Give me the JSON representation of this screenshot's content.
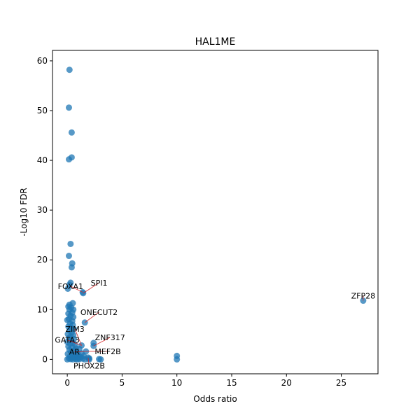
{
  "chart_data": {
    "type": "scatter",
    "title": "HAL1ME",
    "xlabel": "Odds ratio",
    "ylabel": "-Log10 FDR",
    "xlim": [
      -1.35,
      28.35
    ],
    "ylim": [
      -2.9,
      62.1
    ],
    "xticks": [
      0,
      5,
      10,
      15,
      20,
      25
    ],
    "yticks": [
      0,
      10,
      20,
      30,
      40,
      50,
      60
    ],
    "grid": false,
    "point_color": "#1f77b4",
    "annotation_line_color": "#d62728",
    "points": [
      {
        "x": 0.2,
        "y": 58.2
      },
      {
        "x": 0.15,
        "y": 50.6
      },
      {
        "x": 0.4,
        "y": 45.6
      },
      {
        "x": 0.4,
        "y": 40.6
      },
      {
        "x": 0.15,
        "y": 40.2
      },
      {
        "x": 0.3,
        "y": 23.2
      },
      {
        "x": 0.15,
        "y": 20.8
      },
      {
        "x": 0.45,
        "y": 19.3
      },
      {
        "x": 0.4,
        "y": 18.5
      },
      {
        "x": 0.3,
        "y": 15.4
      },
      {
        "x": 0.2,
        "y": 15.0
      },
      {
        "x": 0.05,
        "y": 14.2
      },
      {
        "x": 1.4,
        "y": 13.5
      },
      {
        "x": 1.45,
        "y": 13.3
      },
      {
        "x": 0.5,
        "y": 11.3
      },
      {
        "x": 0.2,
        "y": 11.0
      },
      {
        "x": 0.1,
        "y": 10.6
      },
      {
        "x": 0.35,
        "y": 10.4
      },
      {
        "x": 0.2,
        "y": 10.0
      },
      {
        "x": 0.55,
        "y": 10.0
      },
      {
        "x": 0.45,
        "y": 9.4
      },
      {
        "x": 0.1,
        "y": 9.2
      },
      {
        "x": 0.3,
        "y": 8.8
      },
      {
        "x": 0.55,
        "y": 8.5
      },
      {
        "x": 0.15,
        "y": 8.1
      },
      {
        "x": 0.0,
        "y": 7.9
      },
      {
        "x": 0.45,
        "y": 7.7
      },
      {
        "x": 1.6,
        "y": 7.4
      },
      {
        "x": 0.25,
        "y": 7.2
      },
      {
        "x": 0.5,
        "y": 6.9
      },
      {
        "x": 0.1,
        "y": 6.6
      },
      {
        "x": 0.35,
        "y": 6.3
      },
      {
        "x": 0.6,
        "y": 6.1
      },
      {
        "x": 0.2,
        "y": 5.8
      },
      {
        "x": 0.4,
        "y": 5.4
      },
      {
        "x": 0.05,
        "y": 5.1
      },
      {
        "x": 0.55,
        "y": 4.9
      },
      {
        "x": 0.3,
        "y": 4.6
      },
      {
        "x": 0.15,
        "y": 4.3
      },
      {
        "x": 0.6,
        "y": 4.1
      },
      {
        "x": 0.35,
        "y": 3.8
      },
      {
        "x": 0.0,
        "y": 3.5
      },
      {
        "x": 0.5,
        "y": 3.3
      },
      {
        "x": 0.25,
        "y": 3.1
      },
      {
        "x": 2.4,
        "y": 3.3
      },
      {
        "x": 2.4,
        "y": 2.7
      },
      {
        "x": 0.7,
        "y": 2.9
      },
      {
        "x": 1.3,
        "y": 2.8
      },
      {
        "x": 0.1,
        "y": 2.6
      },
      {
        "x": 0.45,
        "y": 2.4
      },
      {
        "x": 0.8,
        "y": 2.2
      },
      {
        "x": 1.1,
        "y": 2.1
      },
      {
        "x": 0.2,
        "y": 1.9
      },
      {
        "x": 0.6,
        "y": 1.8
      },
      {
        "x": 1.7,
        "y": 1.6
      },
      {
        "x": 0.35,
        "y": 1.5
      },
      {
        "x": 0.9,
        "y": 1.3
      },
      {
        "x": 1.3,
        "y": 1.2
      },
      {
        "x": 0.05,
        "y": 1.1
      },
      {
        "x": 0.5,
        "y": 1.0
      },
      {
        "x": 1.0,
        "y": 0.9
      },
      {
        "x": 0.7,
        "y": 0.8
      },
      {
        "x": 1.5,
        "y": 0.7
      },
      {
        "x": 0.25,
        "y": 0.6
      },
      {
        "x": 0.85,
        "y": 0.5
      },
      {
        "x": 1.2,
        "y": 0.45
      },
      {
        "x": 0.4,
        "y": 0.4
      },
      {
        "x": 1.9,
        "y": 0.35
      },
      {
        "x": 2.0,
        "y": 0.2
      },
      {
        "x": 0.6,
        "y": 0.3
      },
      {
        "x": 1.0,
        "y": 0.25
      },
      {
        "x": 0.15,
        "y": 0.2
      },
      {
        "x": 1.4,
        "y": 0.15
      },
      {
        "x": 0.75,
        "y": 0.1
      },
      {
        "x": 0.3,
        "y": 0.05
      },
      {
        "x": 1.1,
        "y": 0.05
      },
      {
        "x": 0.0,
        "y": 0.0
      },
      {
        "x": 0.5,
        "y": 0.0
      },
      {
        "x": 0.9,
        "y": 0.0
      },
      {
        "x": 1.6,
        "y": 0.0
      },
      {
        "x": 2.0,
        "y": 0.0
      },
      {
        "x": 2.9,
        "y": 0.05
      },
      {
        "x": 3.05,
        "y": 0.0
      },
      {
        "x": 10.0,
        "y": 0.7
      },
      {
        "x": 10.0,
        "y": 0.0
      },
      {
        "x": 27.0,
        "y": 11.8
      }
    ],
    "annotations": [
      {
        "label": "SPI1",
        "x": 1.45,
        "y": 13.3,
        "text_x": 2.9,
        "text_y": 15.4
      },
      {
        "label": "FOXA1",
        "x": 1.4,
        "y": 13.5,
        "text_x": 0.3,
        "text_y": 14.7
      },
      {
        "label": "ZFP28",
        "x": 27.0,
        "y": 11.8,
        "text_x": 27.0,
        "text_y": 12.8
      },
      {
        "label": "ONECUT2",
        "x": 1.6,
        "y": 7.4,
        "text_x": 2.9,
        "text_y": 9.5
      },
      {
        "label": "ZIM3",
        "x": 1.3,
        "y": 2.8,
        "text_x": 0.7,
        "text_y": 6.1
      },
      {
        "label": "ZNF317",
        "x": 2.4,
        "y": 2.7,
        "text_x": 3.9,
        "text_y": 4.4
      },
      {
        "label": "GATA3",
        "x": 1.3,
        "y": 2.8,
        "text_x": 0.0,
        "text_y": 3.9
      },
      {
        "label": "MEF2B",
        "x": 1.7,
        "y": 1.6,
        "text_x": 3.7,
        "text_y": 1.6
      },
      {
        "label": "AR",
        "x": 1.7,
        "y": 1.6,
        "text_x": 0.65,
        "text_y": 1.5
      },
      {
        "label": "PHOX2B",
        "x": 1.9,
        "y": 0.35,
        "text_x": 2.0,
        "text_y": -1.3
      }
    ]
  }
}
